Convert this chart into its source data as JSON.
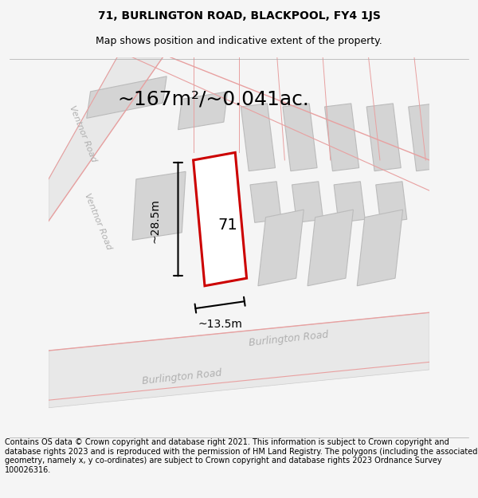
{
  "title_line1": "71, BURLINGTON ROAD, BLACKPOOL, FY4 1JS",
  "title_line2": "Map shows position and indicative extent of the property.",
  "area_text": "~167m²/~0.041ac.",
  "label_number": "71",
  "dim_height": "~28.5m",
  "dim_width": "~13.5m",
  "footer_text": "Contains OS data © Crown copyright and database right 2021. This information is subject to Crown copyright and database rights 2023 and is reproduced with the permission of HM Land Registry. The polygons (including the associated geometry, namely x, y co-ordinates) are subject to Crown copyright and database rights 2023 Ordnance Survey 100026316.",
  "bg_color": "#f5f5f5",
  "map_bg": "#ffffff",
  "road_fill": "#e8e8e8",
  "plot_outline_color": "#cc0000",
  "building_fill": "#d4d4d4",
  "road_stroke": "#e8a0a0",
  "road_label_color": "#b0b0b0",
  "title_fontsize": 10,
  "subtitle_fontsize": 9,
  "area_fontsize": 18,
  "label_fontsize": 14,
  "dim_fontsize": 10,
  "footer_fontsize": 7
}
